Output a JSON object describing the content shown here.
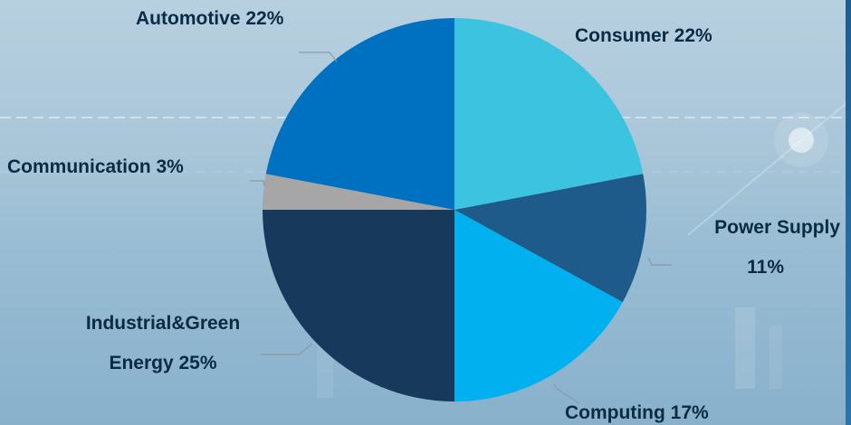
{
  "chart_data": {
    "type": "pie",
    "title": "",
    "slices": [
      {
        "label": "Consumer 22%",
        "value": 22,
        "color": "#3bc3e0"
      },
      {
        "label": "Power Supply 11%",
        "value": 11,
        "color": "#1e5b8a"
      },
      {
        "label": "Computing 17%",
        "value": 17,
        "color": "#00b0ef"
      },
      {
        "label": "Industrial&Green Energy 25%",
        "value": 25,
        "color": "#173a5c"
      },
      {
        "label": "Communication 3%",
        "value": 3,
        "color": "#a6a6a6"
      },
      {
        "label": "Automotive 22%",
        "value": 22,
        "color": "#0070c0"
      }
    ],
    "legend": "none"
  },
  "labels": {
    "consumer": "Consumer 22%",
    "power_supply_line1": "Power Supply",
    "power_supply_line2": "11%",
    "computing": "Computing 17%",
    "industrial_line1": "Industrial&Green",
    "industrial_line2": "Energy 25%",
    "communication": "Communication  3%",
    "automotive": "Automotive 22%"
  }
}
